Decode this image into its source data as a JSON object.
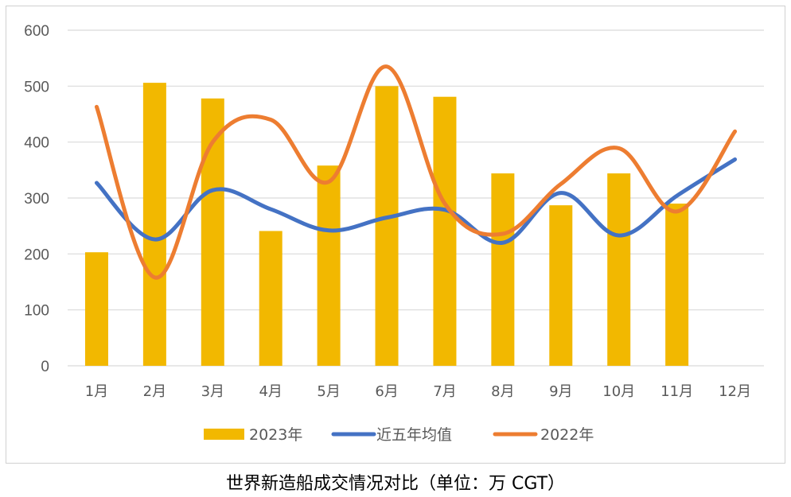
{
  "caption": "世界新造船成交情况对比（单位：万 CGT）",
  "chart_data": {
    "type": "bar+line",
    "categories": [
      "1月",
      "2月",
      "3月",
      "4月",
      "5月",
      "6月",
      "7月",
      "8月",
      "9月",
      "10月",
      "11月",
      "12月"
    ],
    "ylim": [
      0,
      600
    ],
    "yticks": [
      0,
      100,
      200,
      300,
      400,
      500,
      600
    ],
    "grid": true,
    "legend_position": "bottom",
    "series": [
      {
        "name": "2023年",
        "type": "bar",
        "color": "#f2b800",
        "values": [
          203,
          506,
          478,
          241,
          358,
          500,
          481,
          344,
          287,
          344,
          290,
          null
        ]
      },
      {
        "name": "近五年均值",
        "type": "line",
        "color": "#4472c4",
        "values": [
          327,
          226,
          314,
          280,
          242,
          265,
          279,
          220,
          309,
          233,
          304,
          369
        ]
      },
      {
        "name": "2022年",
        "type": "line",
        "color": "#ed7d31",
        "values": [
          463,
          158,
          400,
          440,
          329,
          535,
          290,
          236,
          325,
          389,
          276,
          419
        ]
      }
    ]
  }
}
